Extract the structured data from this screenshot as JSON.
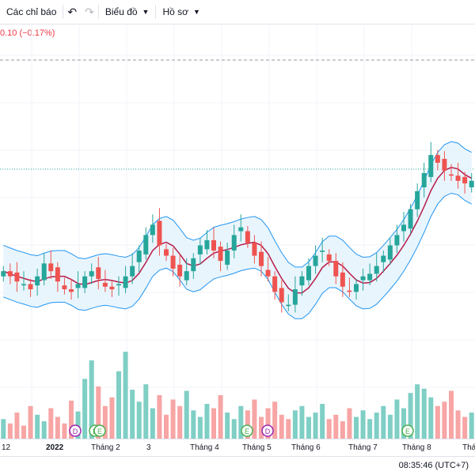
{
  "toolbar": {
    "indicators_label": "Các chỉ báo",
    "chart_label": "Biểu đồ",
    "profile_label": "Hồ sơ"
  },
  "legend": {
    "change": "0.10 (−0.17%)"
  },
  "colors": {
    "up": "#26a69a",
    "down": "#ef5350",
    "band": "#2196f3",
    "band_fill": "#e3f2fd",
    "basis": "#b71c4a",
    "up_vol": "#7fcfc5",
    "down_vol": "#f7a5a5"
  },
  "time_axis": [
    {
      "label": "12",
      "bold": false
    },
    {
      "label": "2022",
      "bold": true
    },
    {
      "label": "Tháng 2",
      "bold": false
    },
    {
      "label": "3",
      "bold": false
    },
    {
      "label": "Tháng 4",
      "bold": false
    },
    {
      "label": "Tháng 5",
      "bold": false
    },
    {
      "label": "Tháng 6",
      "bold": false
    },
    {
      "label": "Tháng 7",
      "bold": false
    },
    {
      "label": "Tháng 8",
      "bold": false
    },
    {
      "label": "Tháng",
      "bold": false
    }
  ],
  "event_markers": [
    {
      "letter": "D",
      "color": "#9c27b0"
    },
    {
      "letter": "E",
      "color": "#4caf50"
    },
    {
      "letter": "E",
      "color": "#4caf50"
    },
    {
      "letter": "E",
      "color": "#4caf50"
    },
    {
      "letter": "D",
      "color": "#9c27b0"
    },
    {
      "letter": "E",
      "color": "#4caf50"
    }
  ],
  "footer": {
    "clock": "08:35:46 (UTC+7)"
  },
  "chart_data": {
    "type": "candlestick",
    "indicator": "Bollinger Bands",
    "x": [
      "12",
      "2022",
      "Tháng 2",
      "3",
      "Tháng 4",
      "Tháng 5",
      "Tháng 6",
      "Tháng 7",
      "Tháng 8",
      "Tháng"
    ],
    "price_series": [
      62,
      60,
      58,
      57,
      55,
      60,
      65,
      62,
      58,
      55,
      54,
      57,
      60,
      62,
      59,
      56,
      55,
      57,
      60,
      64,
      70,
      76,
      80,
      72,
      68,
      63,
      60,
      62,
      67,
      72,
      74,
      70,
      66,
      70,
      76,
      79,
      73,
      68,
      64,
      60,
      54,
      50,
      49,
      55,
      60,
      64,
      68,
      70,
      66,
      60,
      56,
      54,
      57,
      60,
      61,
      64,
      68,
      72,
      76,
      80,
      86,
      93,
      100,
      107,
      104,
      101,
      99,
      97,
      96,
      97
    ],
    "volume_series": [
      18,
      14,
      24,
      12,
      30,
      22,
      16,
      28,
      20,
      14,
      35,
      25,
      55,
      72,
      48,
      30,
      38,
      62,
      80,
      45,
      34,
      50,
      28,
      40,
      22,
      36,
      30,
      44,
      26,
      20,
      32,
      28,
      40,
      24,
      18,
      30,
      26,
      36,
      20,
      28,
      34,
      22,
      18,
      26,
      30,
      20,
      24,
      32,
      18,
      22,
      16,
      28,
      20,
      26,
      18,
      24,
      30,
      22,
      36,
      28,
      42,
      50,
      46,
      38,
      30,
      34,
      44,
      26,
      20,
      24
    ]
  }
}
